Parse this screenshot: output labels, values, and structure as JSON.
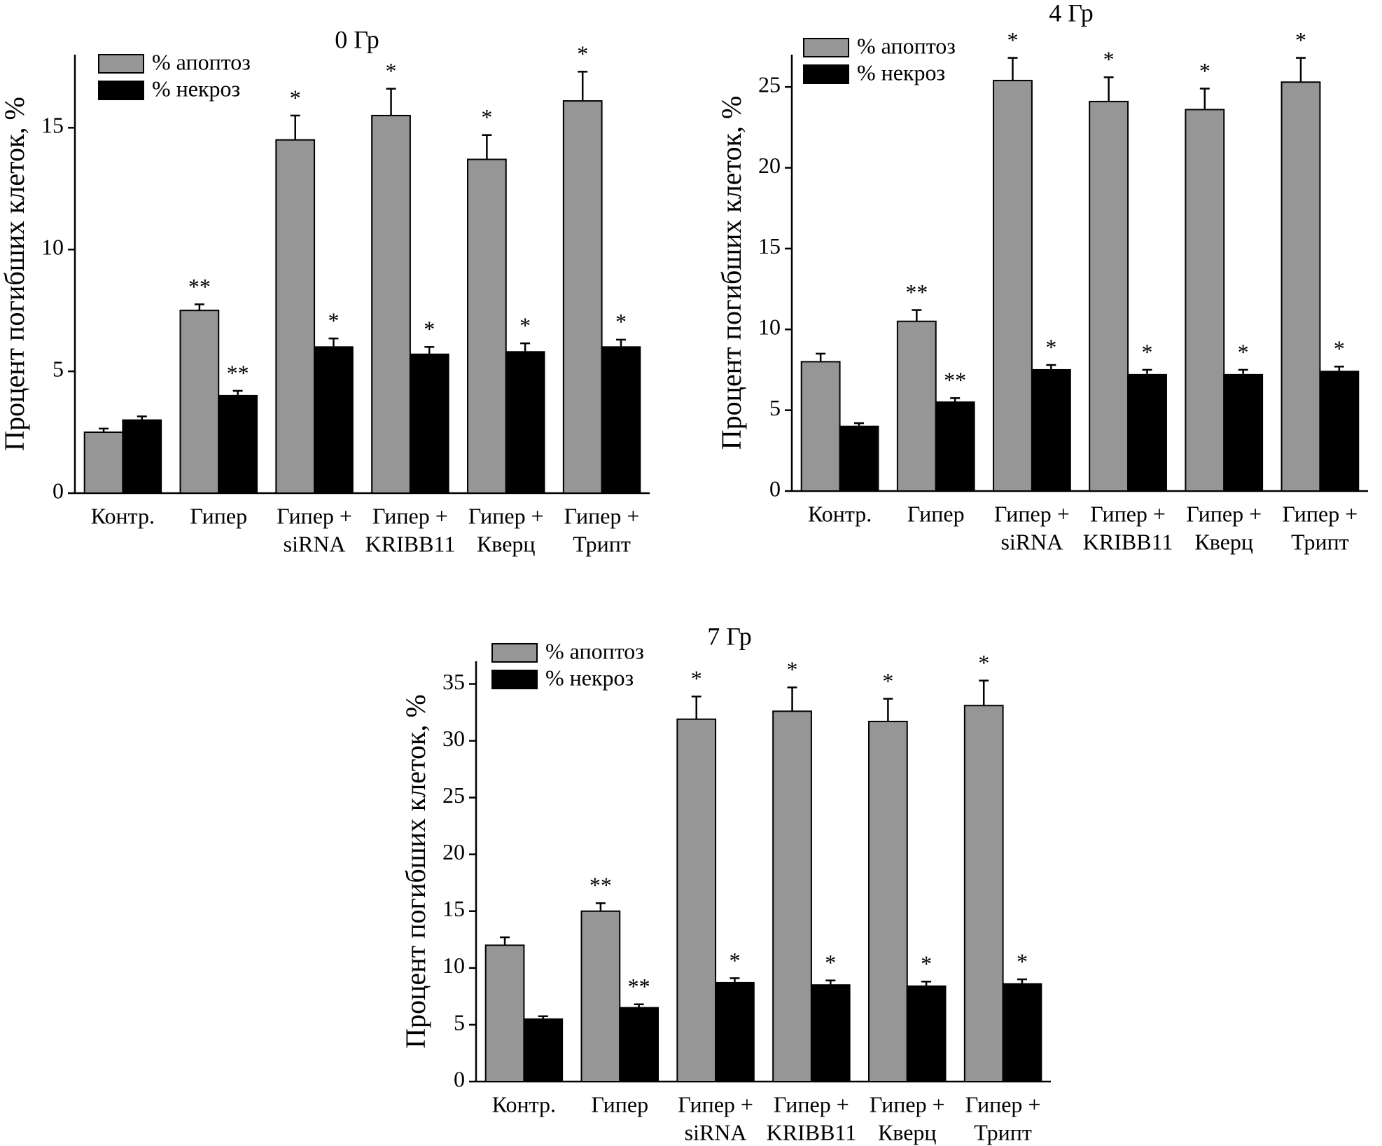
{
  "chart_data": [
    {
      "type": "bar",
      "title": "0 Гр",
      "y_label": "Процент погибших клеток, %",
      "categories": [
        [
          "Контр."
        ],
        [
          "Гипер"
        ],
        [
          "Гипер +",
          "siRNA"
        ],
        [
          "Гипер +",
          "KRIBB11"
        ],
        [
          "Гипер +",
          "Кверц"
        ],
        [
          "Гипер +",
          "Трипт"
        ]
      ],
      "series": [
        {
          "name": "% апоптоз",
          "color": "#969696",
          "values": [
            2.5,
            7.5,
            14.5,
            15.5,
            13.7,
            16.1
          ],
          "errors": [
            0.15,
            0.25,
            1.0,
            1.1,
            1.0,
            1.2
          ],
          "annotations": [
            null,
            "**",
            "*",
            "*",
            "*",
            "*"
          ]
        },
        {
          "name": "% некроз",
          "color": "#000000",
          "values": [
            3.0,
            4.0,
            6.0,
            5.7,
            5.8,
            6.0
          ],
          "errors": [
            0.15,
            0.2,
            0.35,
            0.3,
            0.35,
            0.3
          ],
          "annotations": [
            null,
            "**",
            "*",
            "*",
            "*",
            "*"
          ]
        }
      ],
      "ylim": [
        0,
        18
      ],
      "yticks": [
        0,
        5,
        10,
        15
      ],
      "legend": "upper left"
    },
    {
      "type": "bar",
      "title": "4 Гр",
      "y_label": "Процент погибших клеток, %",
      "categories": [
        [
          "Контр."
        ],
        [
          "Гипер"
        ],
        [
          "Гипер +",
          "siRNA"
        ],
        [
          "Гипер +",
          "KRIBB11"
        ],
        [
          "Гипер +",
          "Кверц"
        ],
        [
          "Гипер +",
          "Трипт"
        ]
      ],
      "series": [
        {
          "name": "% апоптоз",
          "color": "#969696",
          "values": [
            8.0,
            10.5,
            25.4,
            24.1,
            23.6,
            25.3
          ],
          "errors": [
            0.5,
            0.7,
            1.4,
            1.5,
            1.3,
            1.5
          ],
          "annotations": [
            null,
            "**",
            "*",
            "*",
            "*",
            "*"
          ]
        },
        {
          "name": "% некроз",
          "color": "#000000",
          "values": [
            4.0,
            5.5,
            7.5,
            7.2,
            7.2,
            7.4
          ],
          "errors": [
            0.2,
            0.25,
            0.3,
            0.3,
            0.3,
            0.3
          ],
          "annotations": [
            null,
            "**",
            "*",
            "*",
            "*",
            "*"
          ]
        }
      ],
      "ylim": [
        0,
        27
      ],
      "yticks": [
        0,
        5,
        10,
        15,
        20,
        25
      ],
      "legend": "upper left"
    },
    {
      "type": "bar",
      "title": "7 Гр",
      "y_label": "Процент погибших клеток, %",
      "categories": [
        [
          "Контр."
        ],
        [
          "Гипер"
        ],
        [
          "Гипер +",
          "siRNA"
        ],
        [
          "Гипер +",
          "KRIBB11"
        ],
        [
          "Гипер +",
          "Кверц"
        ],
        [
          "Гипер +",
          "Трипт"
        ]
      ],
      "series": [
        {
          "name": "% апоптоз",
          "color": "#969696",
          "values": [
            12.0,
            15.0,
            31.9,
            32.6,
            31.7,
            33.1
          ],
          "errors": [
            0.7,
            0.7,
            2.0,
            2.1,
            2.0,
            2.2
          ],
          "annotations": [
            null,
            "**",
            "*",
            "*",
            "*",
            "*"
          ]
        },
        {
          "name": "% некроз",
          "color": "#000000",
          "values": [
            5.5,
            6.5,
            8.7,
            8.5,
            8.4,
            8.6
          ],
          "errors": [
            0.25,
            0.3,
            0.4,
            0.4,
            0.4,
            0.4
          ],
          "annotations": [
            null,
            "**",
            "*",
            "*",
            "*",
            "*"
          ]
        }
      ],
      "ylim": [
        0,
        37
      ],
      "yticks": [
        0,
        5,
        10,
        15,
        20,
        25,
        30,
        35
      ],
      "legend": "upper left"
    }
  ]
}
